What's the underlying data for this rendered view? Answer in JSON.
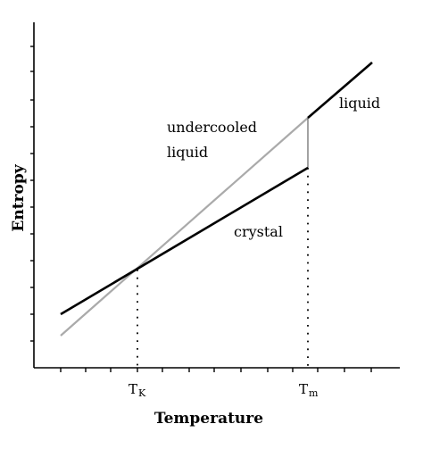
{
  "chart_data": {
    "type": "line",
    "title": "",
    "xlabel": "Temperature",
    "ylabel": "Entropy",
    "x_tick_labels": [
      {
        "main": "T",
        "sub": "K"
      },
      {
        "main": "T",
        "sub": "m"
      }
    ],
    "x_ticks": [
      "T_K",
      "T_m"
    ],
    "series": [
      {
        "name": "crystal",
        "color": "#000000",
        "points": [
          [
            "T_K",
            "S(T_K)"
          ],
          [
            "T_m",
            "S_crystal(T_m)"
          ]
        ]
      },
      {
        "name": "undercooled liquid",
        "color": "#aaaaaa",
        "points": [
          [
            "T_K",
            "S(T_K)"
          ],
          [
            "T_m",
            "S_liquid(T_m)"
          ]
        ]
      },
      {
        "name": "liquid",
        "color": "#000000",
        "points": [
          [
            "T_m",
            "S_liquid(T_m)"
          ]
        ]
      }
    ],
    "annotations": {
      "undercooled_line1": "undercooled",
      "undercooled_line2": "liquid",
      "liquid": "liquid",
      "crystal": "crystal"
    },
    "y_axis_ticks_labeled": false,
    "grid": false,
    "legend": "none"
  }
}
